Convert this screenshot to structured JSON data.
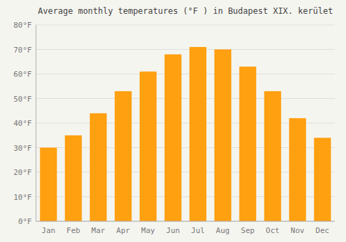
{
  "chart_data": {
    "type": "bar",
    "title": "Average monthly temperatures (°F ) in Budapest XIX. kerület",
    "categories": [
      "Jan",
      "Feb",
      "Mar",
      "Apr",
      "May",
      "Jun",
      "Jul",
      "Aug",
      "Sep",
      "Oct",
      "Nov",
      "Dec"
    ],
    "values": [
      30,
      35,
      44,
      53,
      61,
      68,
      71,
      70,
      63,
      53,
      42,
      34
    ],
    "color": "#FFA010",
    "ylim": [
      0,
      80
    ],
    "yticks": [
      {
        "value": 0,
        "label": "0°F"
      },
      {
        "value": 10,
        "label": "10°F"
      },
      {
        "value": 20,
        "label": "20°F"
      },
      {
        "value": 30,
        "label": "30°F"
      },
      {
        "value": 40,
        "label": "40°F"
      },
      {
        "value": 50,
        "label": "50°F"
      },
      {
        "value": 60,
        "label": "60°F"
      },
      {
        "value": 70,
        "label": "70°F"
      },
      {
        "value": 80,
        "label": "80°F"
      }
    ],
    "grid": true
  }
}
